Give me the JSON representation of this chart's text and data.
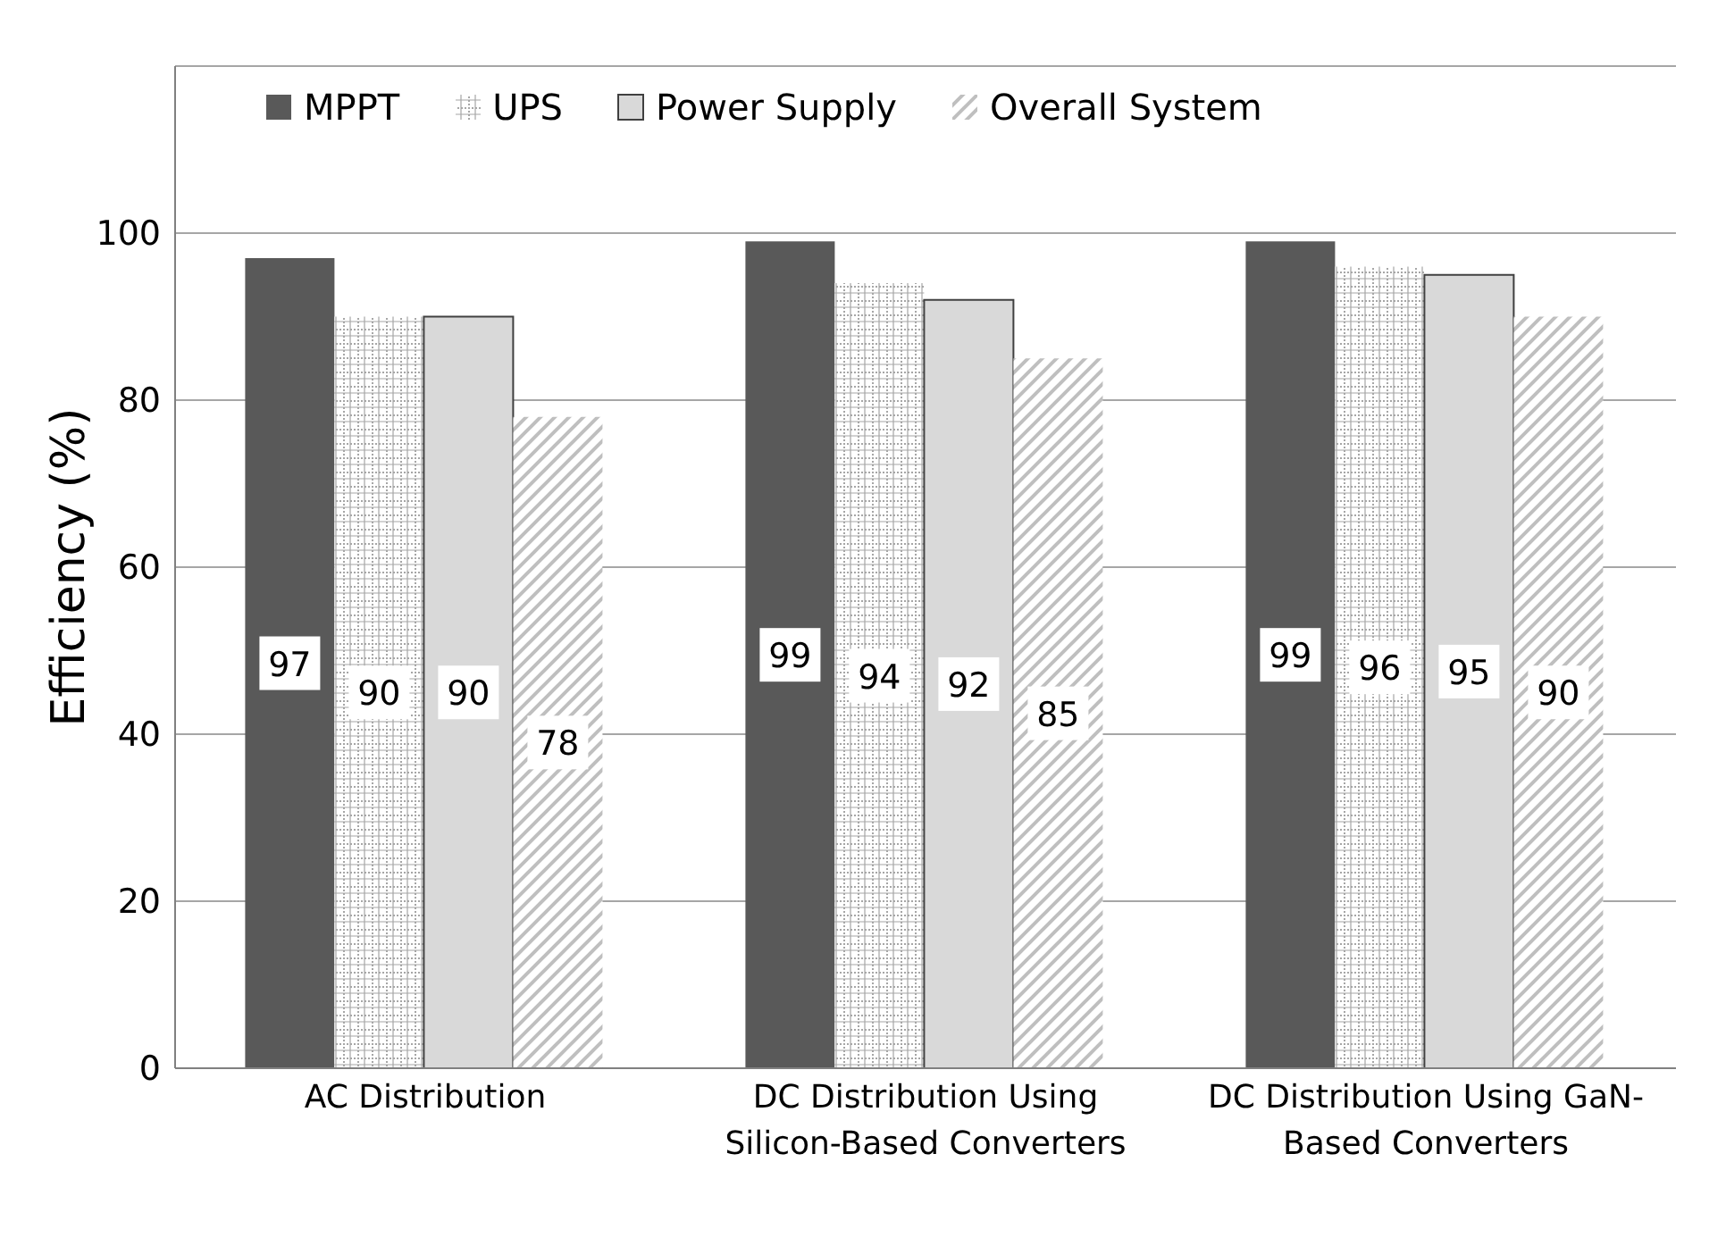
{
  "chart_data": {
    "type": "bar",
    "ylabel": "Efficiency (%)",
    "categories": [
      "AC Distribution",
      "DC Distribution Using Silicon-Based Converters",
      "DC Distribution Using GaN-Based Converters"
    ],
    "series": [
      {
        "name": "MPPT",
        "color": "#595959",
        "values": [
          97,
          99,
          99
        ]
      },
      {
        "name": "UPS",
        "color": "#a6a6a6",
        "values": [
          90,
          94,
          96
        ]
      },
      {
        "name": "Power Supply",
        "color": "#d9d9d9",
        "values": [
          90,
          92,
          95
        ]
      },
      {
        "name": "Overall System",
        "color": "#bfbfbf",
        "values": [
          78,
          85,
          90
        ]
      }
    ],
    "ylim": [
      0,
      120
    ],
    "yticks": [
      0,
      20,
      40,
      60,
      80,
      100
    ],
    "grid": "y",
    "legend": "top",
    "data_labels": true
  }
}
